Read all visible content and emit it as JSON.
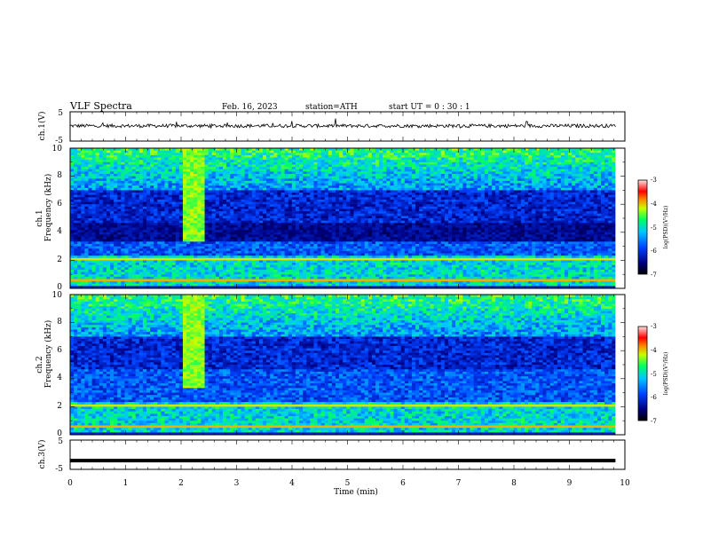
{
  "header": {
    "title": "VLF  Spectra",
    "date": "Feb. 16, 2023",
    "station": "station=ATH",
    "start": "start  UT  =    0  : 30 : 1"
  },
  "chart_data": [
    {
      "type": "line",
      "name": "ch1-waveform",
      "ylabel": "ch.1(V)",
      "ylim": [
        -5,
        5
      ],
      "yticks": [
        "5",
        "-5"
      ],
      "xlim": [
        0,
        10
      ],
      "note_baseline_v": 0.2
    },
    {
      "type": "heatmap",
      "name": "ch1-spectrogram",
      "ylabel": "ch.1\nFrequency  (kHz)",
      "ylabel_line1": "ch.1",
      "ylabel_line2": "Frequency  (kHz)",
      "ylim": [
        0,
        10
      ],
      "yticks": [
        "0",
        "2",
        "4",
        "6",
        "8",
        "10"
      ],
      "xlim": [
        0,
        10
      ],
      "colorbar": {
        "label": "log(PSD)(V²/Hz)",
        "range": [
          -7,
          -3
        ],
        "ticks": [
          "-3",
          "-4",
          "-5",
          "-6",
          "-7"
        ]
      }
    },
    {
      "type": "heatmap",
      "name": "ch2-spectrogram",
      "ylabel_line1": "ch.2",
      "ylabel_line2": "Frequency  (kHz)",
      "ylim": [
        0,
        10
      ],
      "yticks": [
        "0",
        "2",
        "4",
        "6",
        "8",
        "10"
      ],
      "xlim": [
        0,
        10
      ],
      "colorbar": {
        "label": "log(PSD)(V²/Hz)",
        "range": [
          -7,
          -3
        ],
        "ticks": [
          "-3",
          "-4",
          "-5",
          "-6",
          "-7"
        ]
      }
    },
    {
      "type": "line",
      "name": "ch3-waveform",
      "ylabel": "ch.3(V)",
      "ylim": [
        -5,
        5
      ],
      "yticks": [
        "5",
        "-5"
      ],
      "xlim": [
        0,
        10
      ],
      "xlabel": "Time  (min)",
      "xticks": [
        "0",
        "1",
        "2",
        "3",
        "4",
        "5",
        "6",
        "7",
        "8",
        "9",
        "10"
      ],
      "constant_v": -2
    }
  ]
}
